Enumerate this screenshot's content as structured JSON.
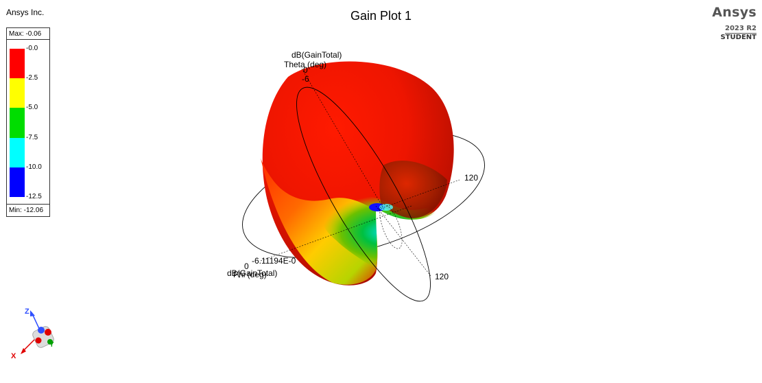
{
  "header": {
    "company": "Ansys Inc.",
    "brand_name": "Ansys",
    "brand_version": "2023 R2",
    "brand_edition": "STUDENT"
  },
  "chart_data": {
    "type": "3d-polar-surface",
    "title": "Gain Plot 1",
    "quantity": "dB(GainTotal)",
    "max": -0.06,
    "min": -12.06,
    "legend": {
      "max_label": "Max: -0.06",
      "min_label": "Min: -12.06",
      "ticks": [
        "-0.0",
        "-2.5",
        "-5.0",
        "-7.5",
        "-10.0",
        "-12.5"
      ],
      "bands": [
        "#ff0000",
        "#ffff00",
        "#00dd00",
        "#00ffff",
        "#0000ff"
      ],
      "placement": "top-left"
    },
    "axes": {
      "theta_quantity": "dB(GainTotal)",
      "theta_label": "Theta (deg)",
      "theta_zero": "0",
      "theta_value": "-6",
      "theta_tick": "120",
      "phi_quantity": "dB(GainTotal)",
      "phi_label": "Phi (deg)",
      "phi_zero": "0",
      "phi_value": "-6.11194E-0",
      "phi_tick": "120"
    }
  },
  "triad": {
    "x": "X",
    "y": "Y",
    "z": "Z"
  }
}
